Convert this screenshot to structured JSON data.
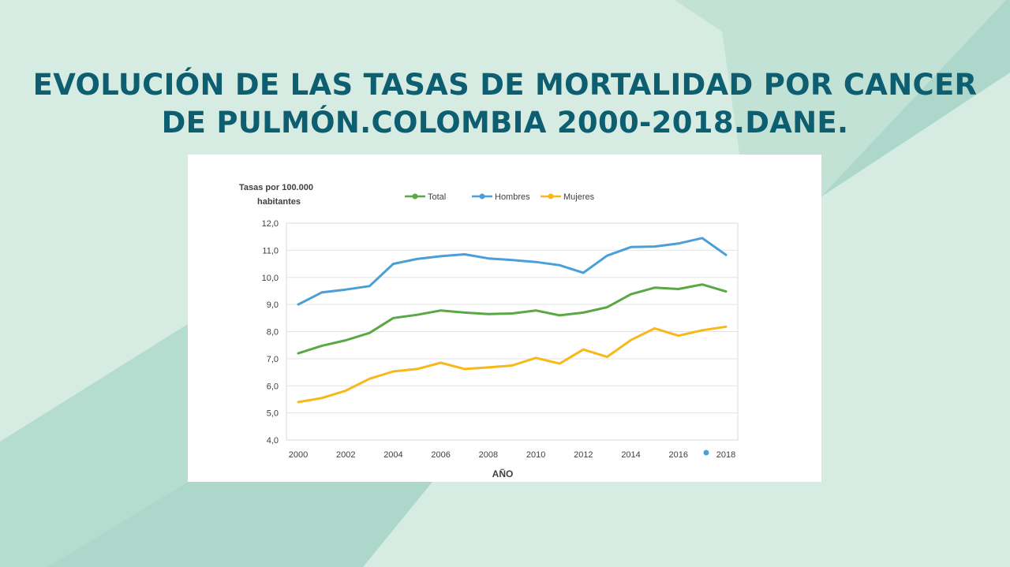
{
  "slide": {
    "title_line1": "EVOLUCIÓN DE LAS TASAS DE MORTALIDAD POR CANCER",
    "title_line2": "DE PULMÓN.COLOMBIA 2000-2018.DANE.",
    "title_color": "#0e5e72",
    "background_color": "#d6ece2"
  },
  "chart_data": {
    "type": "line",
    "ylabel_line1": "Tasas por 100.000",
    "ylabel_line2": "habitantes",
    "xlabel": "AÑO",
    "ylim": [
      4.0,
      12.0
    ],
    "yticks": [
      "12,0",
      "11,0",
      "10,0",
      "9,0",
      "8,0",
      "7,0",
      "6,0",
      "5,0",
      "4,0"
    ],
    "ytick_values": [
      12,
      11,
      10,
      9,
      8,
      7,
      6,
      5,
      4
    ],
    "x": [
      2000,
      2001,
      2002,
      2003,
      2004,
      2005,
      2006,
      2007,
      2008,
      2009,
      2010,
      2011,
      2012,
      2013,
      2014,
      2015,
      2016,
      2017,
      2018
    ],
    "xticks": [
      "2000",
      "2002",
      "2004",
      "2006",
      "2008",
      "2010",
      "2012",
      "2014",
      "2016",
      "2018"
    ],
    "xtick_values": [
      2000,
      2002,
      2004,
      2006,
      2008,
      2010,
      2012,
      2014,
      2016,
      2018
    ],
    "legend_position": "top",
    "grid": true,
    "series": [
      {
        "name": "Total",
        "color": "#5aa843",
        "values": [
          7.2,
          7.48,
          7.68,
          7.95,
          8.5,
          8.62,
          8.78,
          8.7,
          8.65,
          8.67,
          8.78,
          8.6,
          8.7,
          8.9,
          9.38,
          9.62,
          9.57,
          9.74,
          9.48
        ]
      },
      {
        "name": "Hombres",
        "color": "#4a9fd8",
        "values": [
          9.0,
          9.45,
          9.55,
          9.68,
          10.5,
          10.68,
          10.78,
          10.85,
          10.7,
          10.64,
          10.57,
          10.45,
          10.17,
          10.8,
          11.12,
          11.14,
          11.25,
          11.45,
          10.83
        ]
      },
      {
        "name": "Mujeres",
        "color": "#f7b818",
        "values": [
          5.4,
          5.55,
          5.82,
          6.26,
          6.53,
          6.62,
          6.85,
          6.62,
          6.68,
          6.75,
          7.03,
          6.82,
          7.34,
          7.07,
          7.69,
          8.12,
          7.85,
          8.05,
          8.18
        ]
      }
    ]
  }
}
